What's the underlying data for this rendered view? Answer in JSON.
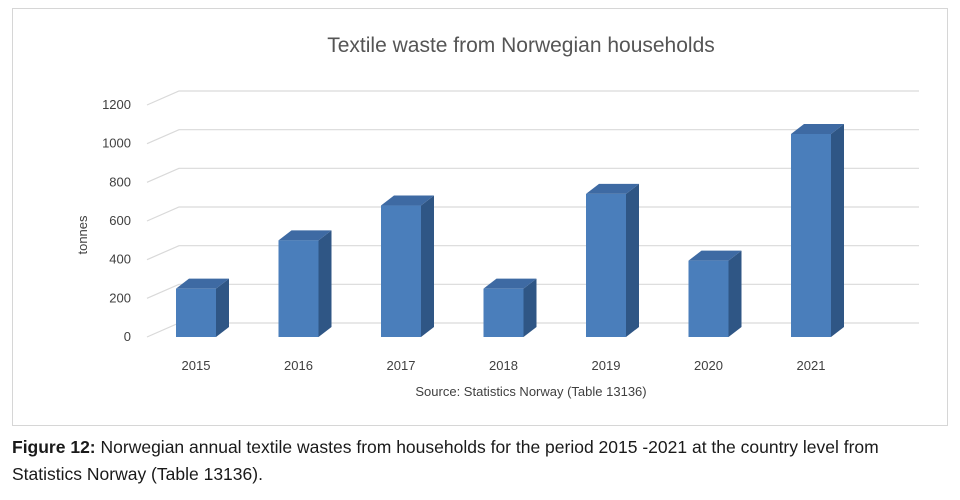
{
  "chart_data": {
    "type": "bar",
    "title": "Textile waste from Norwegian households",
    "categories": [
      "2015",
      "2016",
      "2017",
      "2018",
      "2019",
      "2020",
      "2021"
    ],
    "values": [
      250,
      500,
      680,
      250,
      740,
      395,
      1050
    ],
    "ylabel": "tonnes",
    "xlabel": "Source: Statistics Norway (Table 13136)",
    "ylim": [
      0,
      1200
    ],
    "yticks": [
      "0",
      "200",
      "400",
      "600",
      "800",
      "1000",
      "1200"
    ],
    "grid": true,
    "legend": "none",
    "style": "3d-column",
    "colors": {
      "bar_front": "#4a7ebb",
      "bar_side": "#2f5685",
      "bar_top": "#3e6aa3"
    }
  },
  "caption": {
    "label": "Figure 12:",
    "text": " Norwegian annual textile wastes from households for the period 2015 -2021 at the country level from Statistics Norway (Table 13136)."
  }
}
